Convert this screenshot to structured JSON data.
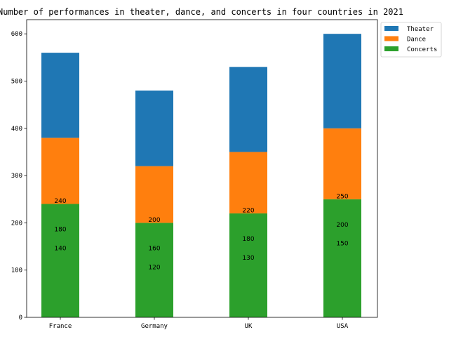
{
  "chart_data": {
    "type": "bar",
    "stacked": true,
    "title": "Number of performances in theater, dance, and concerts in four countries in 2021",
    "categories": [
      "France",
      "Germany",
      "UK",
      "USA"
    ],
    "series": [
      {
        "name": "Concerts",
        "values": [
          240,
          200,
          220,
          250
        ],
        "color": "#2ca02c"
      },
      {
        "name": "Dance",
        "values": [
          140,
          120,
          130,
          150
        ],
        "color": "#ff7f0e"
      },
      {
        "name": "Theater",
        "values": [
          180,
          160,
          180,
          200
        ],
        "color": "#1f77b4"
      }
    ],
    "annotations": [
      {
        "category": "France",
        "labels": [
          "240",
          "180",
          "140"
        ]
      },
      {
        "category": "Germany",
        "labels": [
          "200",
          "160",
          "120"
        ]
      },
      {
        "category": "UK",
        "labels": [
          "220",
          "180",
          "130"
        ]
      },
      {
        "category": "USA",
        "labels": [
          "250",
          "200",
          "150"
        ]
      }
    ],
    "ylim": [
      0,
      630
    ],
    "yticks": [
      0,
      100,
      200,
      300,
      400,
      500,
      600
    ],
    "legend_order": [
      "Theater",
      "Dance",
      "Concerts"
    ],
    "legend_position": "outside-top-right",
    "grid": false
  }
}
